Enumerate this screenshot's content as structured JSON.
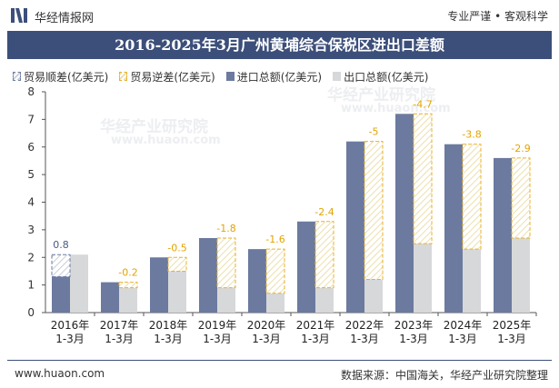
{
  "header": {
    "brand": "华经情报网",
    "slogan": "专业严谨 • 客观科学"
  },
  "chart_data": {
    "type": "bar",
    "title": "2016-2025年3月广州黄埔综合保税区进出口差额",
    "categories": [
      [
        "2016年",
        "1-3月"
      ],
      [
        "2017年",
        "1-3月"
      ],
      [
        "2018年",
        "1-3月"
      ],
      [
        "2019年",
        "1-3月"
      ],
      [
        "2020年",
        "1-3月"
      ],
      [
        "2021年",
        "1-3月"
      ],
      [
        "2022年",
        "1-3月"
      ],
      [
        "2023年",
        "1-3月"
      ],
      [
        "2024年",
        "1-3月"
      ],
      [
        "2025年",
        "1-3月"
      ]
    ],
    "ylim": [
      0,
      8
    ],
    "yticks": [
      0,
      1,
      2,
      3,
      4,
      5,
      6,
      7,
      8
    ],
    "legend": [
      "贸易顺差(亿美元)",
      "贸易逆差(亿美元)",
      "进口总额(亿美元)",
      "出口总额(亿美元)"
    ],
    "series": [
      {
        "name": "进口总额(亿美元)",
        "values": [
          1.3,
          1.1,
          2.0,
          2.7,
          2.3,
          3.3,
          6.2,
          7.2,
          6.1,
          5.6
        ]
      },
      {
        "name": "出口总额(亿美元)",
        "values": [
          2.1,
          0.9,
          1.5,
          0.9,
          0.7,
          0.9,
          1.2,
          2.5,
          2.3,
          2.7
        ]
      }
    ],
    "balance": [
      0.8,
      -0.2,
      -0.5,
      -1.8,
      -1.6,
      -2.4,
      -5,
      -4.7,
      -3.8,
      -2.9
    ],
    "balance_labels": [
      "0.8",
      "-0.2",
      "-0.5",
      "-1.8",
      "-1.6",
      "-2.4",
      "-5",
      "-4.7",
      "-3.8",
      "-2.9"
    ],
    "colors": {
      "import": "#6c7a9f",
      "export": "#d7d8da",
      "surplus_border": "#6f7fa3",
      "deficit_border": "#e8b22a",
      "surplus_label": "#4a5a82",
      "deficit_label": "#e3a400"
    }
  },
  "watermarks": [
    "华经产业研究院",
    "www.huaon.com"
  ],
  "footer": {
    "site": "www.huaon.com",
    "source": "数据来源：中国海关，华经产业研究院整理"
  }
}
